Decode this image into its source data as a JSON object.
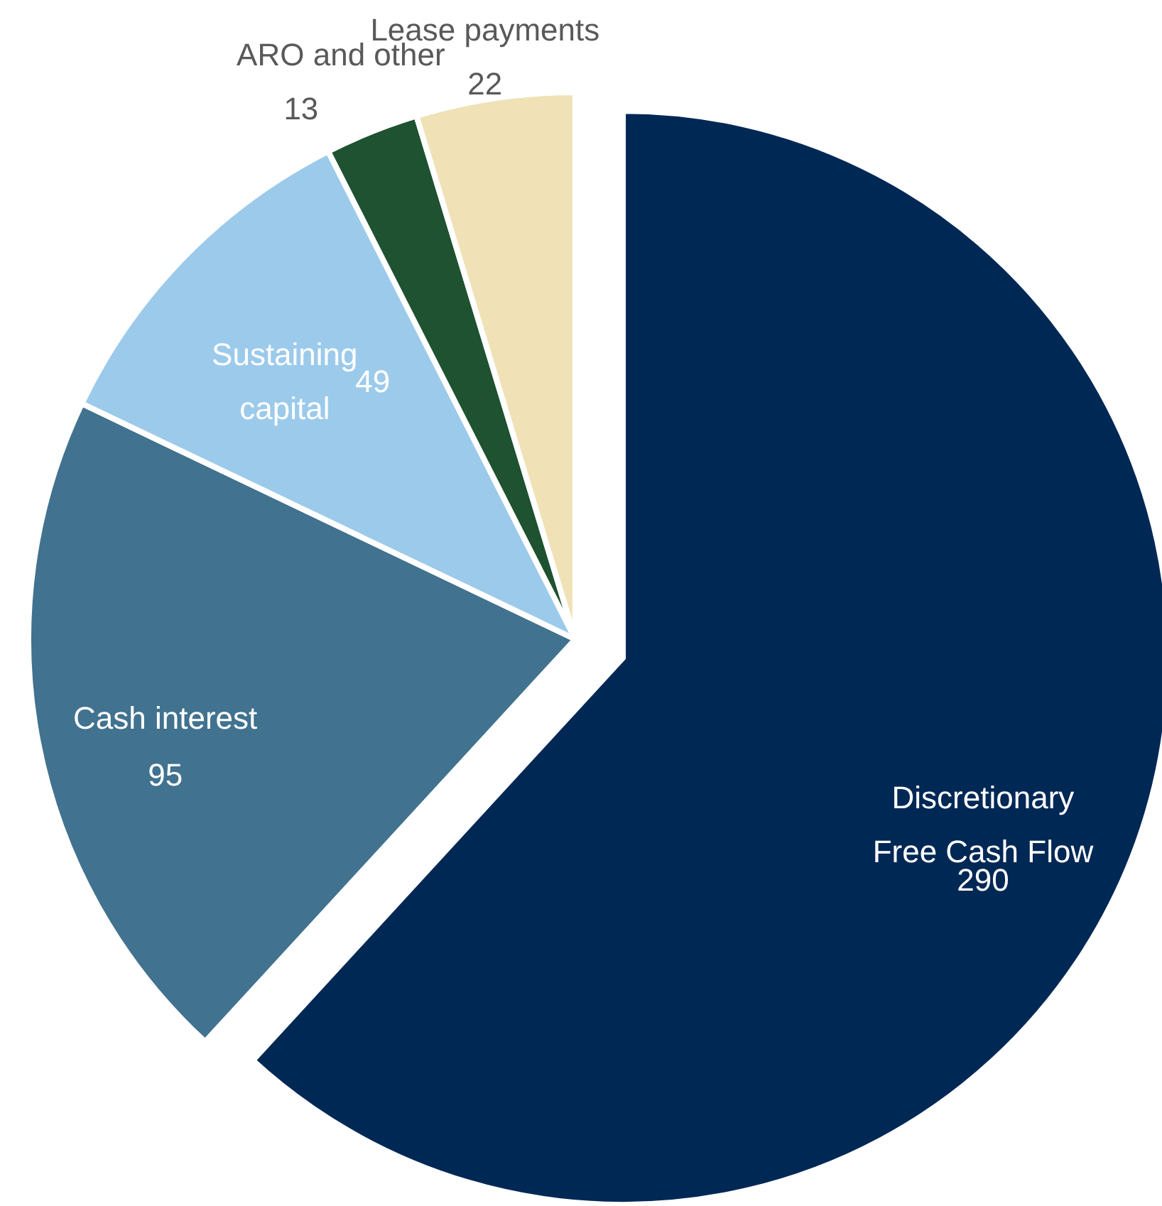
{
  "chart_data": {
    "type": "pie",
    "categories": [
      "Discretionary Free Cash Flow",
      "Cash interest",
      "Sustaining capital",
      "ARO and other",
      "Lease payments"
    ],
    "values": [
      290,
      95,
      49,
      13,
      22
    ],
    "colors": [
      "#002855",
      "#41728f",
      "#9ccaeb",
      "#1e5230",
      "#f0e2b6"
    ],
    "data_labels": true
  }
}
